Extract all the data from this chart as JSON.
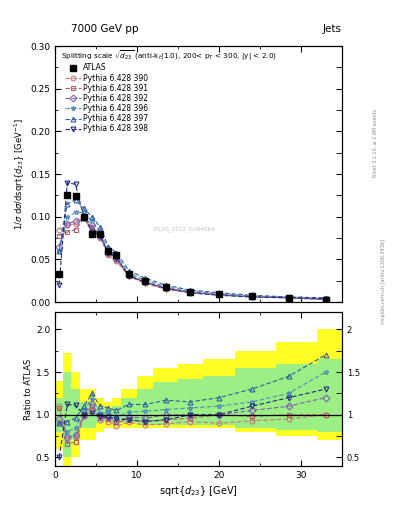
{
  "title_left": "7000 GeV pp",
  "title_right": "Jets",
  "annotation": "Splitting scale $\\sqrt{d_{23}}$ (anti-k$_t$(1.0), 200< p$_T$ < 300, |y| < 2.0)",
  "xlabel": "sqrt{$d_{23}$} [GeV]",
  "ylabel_main": "1/$\\sigma$ d$\\sigma$/dsqrt{$d_{23}$} [GeV$^{-1}$]",
  "ylabel_ratio": "Ratio to ATLAS",
  "xlim": [
    0,
    35
  ],
  "ylim_main": [
    0,
    0.3
  ],
  "ylim_ratio": [
    0.4,
    2.2
  ],
  "x_data": [
    0.5,
    1.5,
    2.5,
    3.5,
    4.5,
    5.5,
    6.5,
    7.5,
    9.0,
    11.0,
    13.5,
    16.5,
    20.0,
    24.0,
    28.5,
    33.0
  ],
  "atlas_y": [
    0.033,
    0.125,
    0.124,
    0.1,
    0.08,
    0.08,
    0.06,
    0.055,
    0.033,
    0.025,
    0.018,
    0.012,
    0.009,
    0.007,
    0.005,
    0.003
  ],
  "py390_y": [
    0.085,
    0.09,
    0.092,
    0.099,
    0.085,
    0.075,
    0.055,
    0.048,
    0.03,
    0.022,
    0.015,
    0.011,
    0.008,
    0.006,
    0.005,
    0.003
  ],
  "py391_y": [
    0.078,
    0.082,
    0.085,
    0.098,
    0.088,
    0.077,
    0.057,
    0.05,
    0.031,
    0.023,
    0.016,
    0.011,
    0.009,
    0.006,
    0.005,
    0.003
  ],
  "py392_y": [
    0.065,
    0.092,
    0.095,
    0.1,
    0.09,
    0.078,
    0.058,
    0.051,
    0.032,
    0.024,
    0.017,
    0.012,
    0.009,
    0.007,
    0.005,
    0.003
  ],
  "py396_y": [
    0.06,
    0.1,
    0.105,
    0.105,
    0.095,
    0.082,
    0.061,
    0.054,
    0.034,
    0.026,
    0.018,
    0.013,
    0.01,
    0.007,
    0.006,
    0.004
  ],
  "py397_y": [
    0.06,
    0.115,
    0.12,
    0.11,
    0.1,
    0.088,
    0.065,
    0.058,
    0.037,
    0.028,
    0.02,
    0.014,
    0.011,
    0.008,
    0.006,
    0.005
  ],
  "py398_y": [
    0.02,
    0.14,
    0.138,
    0.1,
    0.082,
    0.078,
    0.058,
    0.052,
    0.031,
    0.023,
    0.016,
    0.011,
    0.008,
    0.006,
    0.005,
    0.004
  ],
  "ratio390": [
    1.1,
    0.72,
    0.74,
    0.99,
    1.06,
    0.94,
    0.92,
    0.87,
    0.91,
    0.88,
    0.89,
    0.92,
    0.9,
    0.93,
    0.95,
    1.0
  ],
  "ratio391": [
    1.08,
    0.66,
    0.68,
    0.98,
    1.1,
    0.96,
    0.95,
    0.91,
    0.94,
    0.92,
    0.94,
    0.96,
    1.0,
    0.98,
    1.0,
    1.0
  ],
  "ratio392": [
    0.95,
    0.74,
    0.76,
    1.0,
    1.12,
    0.98,
    0.97,
    0.93,
    0.97,
    0.96,
    1.0,
    1.0,
    1.0,
    1.05,
    1.1,
    1.2
  ],
  "ratio396": [
    0.9,
    0.8,
    0.84,
    1.05,
    1.19,
    1.02,
    1.02,
    0.98,
    1.03,
    1.04,
    1.06,
    1.08,
    1.1,
    1.15,
    1.25,
    1.5
  ],
  "ratio397": [
    0.9,
    0.92,
    0.96,
    1.1,
    1.25,
    1.1,
    1.08,
    1.05,
    1.12,
    1.12,
    1.17,
    1.15,
    1.2,
    1.3,
    1.45,
    1.7
  ],
  "ratio398": [
    0.5,
    1.12,
    1.11,
    1.0,
    1.02,
    0.98,
    0.97,
    0.95,
    0.94,
    0.92,
    0.94,
    1.0,
    1.0,
    1.1,
    1.2,
    1.3
  ],
  "band_xedges": [
    0,
    1,
    2,
    3,
    4,
    5,
    6,
    7,
    8,
    10,
    12,
    15,
    18,
    22,
    27,
    32,
    35
  ],
  "yellow_lo": [
    0.6,
    0.28,
    0.5,
    0.7,
    0.7,
    0.8,
    0.85,
    0.85,
    0.85,
    0.85,
    0.85,
    0.85,
    0.85,
    0.8,
    0.75,
    0.7
  ],
  "yellow_hi": [
    1.4,
    1.72,
    1.5,
    1.3,
    1.3,
    1.2,
    1.15,
    1.2,
    1.3,
    1.45,
    1.55,
    1.6,
    1.65,
    1.75,
    1.85,
    2.0
  ],
  "green_lo": [
    0.8,
    0.5,
    0.7,
    0.85,
    0.85,
    0.9,
    0.92,
    0.92,
    0.9,
    0.88,
    0.88,
    0.88,
    0.88,
    0.85,
    0.82,
    0.8
  ],
  "green_hi": [
    1.2,
    1.5,
    1.3,
    1.15,
    1.15,
    1.1,
    1.08,
    1.1,
    1.2,
    1.3,
    1.38,
    1.42,
    1.45,
    1.55,
    1.6,
    1.65
  ],
  "color390": "#c87878",
  "color391": "#b06060",
  "color392": "#8060b0",
  "color396": "#5090b8",
  "color397": "#3060a0",
  "color398": "#202880",
  "atlas_id": "ATLAS_2012_I1094564"
}
